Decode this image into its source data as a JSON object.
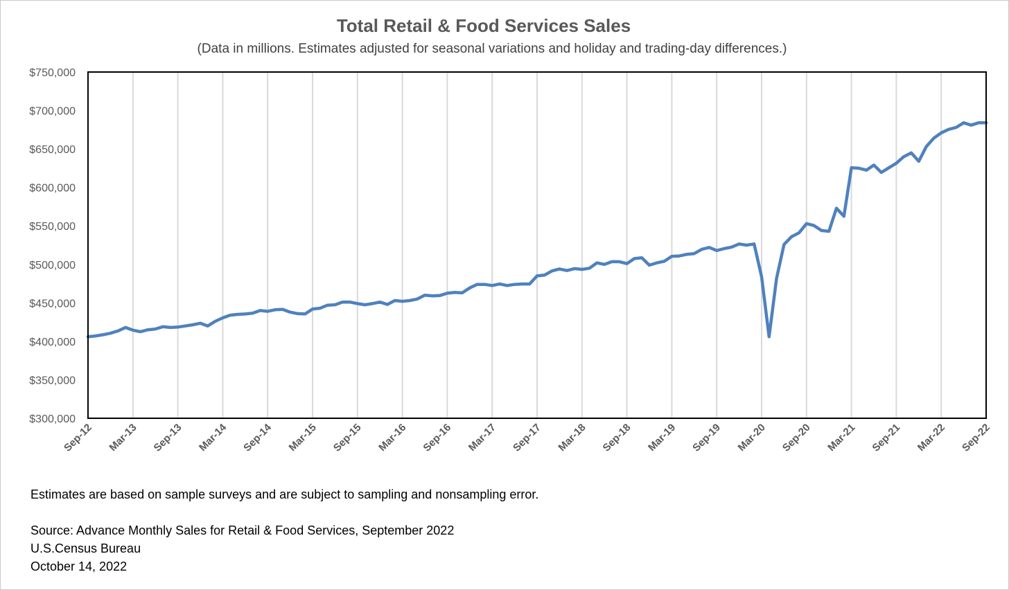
{
  "chart_data": {
    "type": "line",
    "title": "Total Retail & Food Services Sales",
    "subtitle": "(Data in millions. Estimates adjusted for seasonal variations and holiday and trading-day differences.)",
    "xlabel": "",
    "ylabel": "",
    "ylim": [
      300000,
      750000
    ],
    "yticks": [
      "$300,000",
      "$350,000",
      "$400,000",
      "$450,000",
      "$500,000",
      "$550,000",
      "$600,000",
      "$650,000",
      "$700,000",
      "$750,000"
    ],
    "xticks": [
      "Sep-12",
      "Mar-13",
      "Sep-13",
      "Mar-14",
      "Sep-14",
      "Mar-15",
      "Sep-15",
      "Mar-16",
      "Sep-16",
      "Mar-17",
      "Sep-17",
      "Mar-18",
      "Sep-18",
      "Mar-19",
      "Sep-19",
      "Mar-20",
      "Sep-20",
      "Mar-21",
      "Sep-21",
      "Mar-22",
      "Sep-22"
    ],
    "grid": "vertical",
    "legend": "none",
    "line_color": "#4F81BD",
    "x_start": "Sep-12",
    "x_end": "Sep-22",
    "series": [
      {
        "values": [
          406000,
          407000,
          408500,
          410500,
          413500,
          418000,
          414500,
          412500,
          415000,
          416000,
          419000,
          418000,
          418500,
          420000,
          421500,
          423500,
          420000,
          426000,
          430500,
          434000,
          435000,
          435500,
          436500,
          440000,
          439000,
          441000,
          441500,
          438000,
          436000,
          435500,
          442000,
          443000,
          447000,
          447500,
          451000,
          451000,
          449000,
          447500,
          449000,
          451000,
          448000,
          453000,
          452000,
          453000,
          455000,
          460000,
          459000,
          459500,
          462500,
          463500,
          463000,
          469500,
          474000,
          474000,
          472500,
          474500,
          472500,
          474000,
          474500,
          474500,
          485000,
          486000,
          491500,
          494000,
          492000,
          494500,
          493500,
          495000,
          502000,
          500000,
          503500,
          503500,
          501000,
          507500,
          508500,
          499000,
          502000,
          504000,
          510500,
          511000,
          513000,
          514000,
          519500,
          522000,
          518000,
          520500,
          522500,
          526500,
          525000,
          526500,
          484000,
          406000,
          482000,
          526000,
          536000,
          541000,
          553000,
          550500,
          544000,
          543000,
          573000,
          562500,
          625500,
          625000,
          622500,
          629000,
          619500,
          625500,
          631500,
          640000,
          645000,
          634000,
          653000,
          664000,
          671000,
          675500,
          678000,
          684000,
          681000,
          684000,
          684000
        ]
      }
    ],
    "notes": [
      "Estimates are based on sample surveys and are subject to sampling and nonsampling error.",
      "Source: Advance Monthly Sales for Retail & Food Services, September 2022",
      "U.S.Census Bureau",
      "October 14, 2022"
    ]
  }
}
